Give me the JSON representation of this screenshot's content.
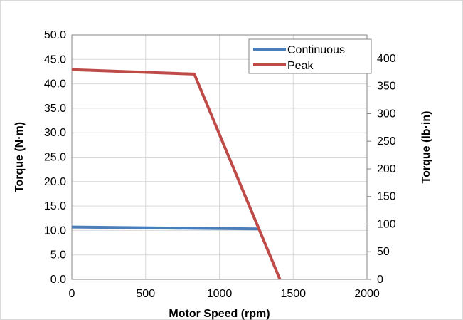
{
  "chart_data": {
    "type": "line",
    "title": "",
    "xlabel": "Motor Speed (rpm)",
    "ylabel": "Torque (N·m)",
    "y2label": "Torque (lb·in)",
    "xlim": [
      0,
      2000
    ],
    "ylim": [
      0,
      50
    ],
    "y2lim": [
      0,
      442.5
    ],
    "x_ticks": [
      "0",
      "500",
      "1000",
      "1500",
      "2000"
    ],
    "y_ticks": [
      "0.0",
      "5.0",
      "10.0",
      "15.0",
      "20.0",
      "25.0",
      "30.0",
      "35.0",
      "40.0",
      "45.0",
      "50.0"
    ],
    "y2_ticks": [
      "0",
      "50",
      "100",
      "150",
      "200",
      "250",
      "300",
      "350",
      "400"
    ],
    "y2_tick_values": [
      0,
      50,
      100,
      150,
      200,
      250,
      300,
      350,
      400
    ],
    "grid": true,
    "legend_position": "top-right",
    "series": [
      {
        "name": "Continuous",
        "color": "#4a7ebb",
        "x": [
          0,
          1260
        ],
        "y": [
          10.7,
          10.3
        ]
      },
      {
        "name": "Peak",
        "color": "#be4b48",
        "x": [
          0,
          830,
          1410
        ],
        "y": [
          42.9,
          42.0,
          0
        ]
      }
    ]
  }
}
